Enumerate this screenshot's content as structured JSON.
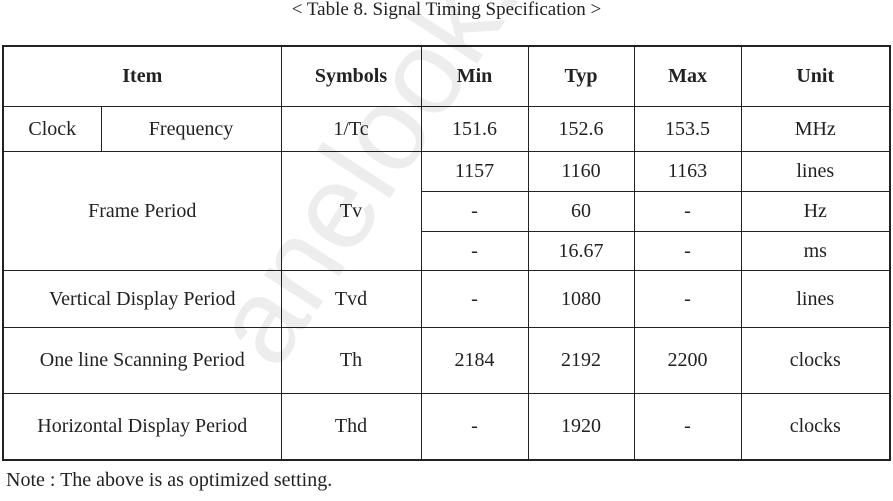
{
  "title": "< Table 8. Signal Timing Specification >",
  "table": {
    "header": [
      "Item",
      "Symbols",
      "Min",
      "Typ",
      "Max",
      "Unit"
    ],
    "rows": [
      [
        "Clock",
        "Frequency",
        "1/Tc",
        "151.6",
        "152.6",
        "153.5",
        "MHz"
      ],
      [
        "Frame Period",
        "Tv",
        "1157",
        "1160",
        "1163",
        "lines"
      ],
      [
        "-",
        "60",
        "-",
        "Hz"
      ],
      [
        "-",
        "16.67",
        "-",
        "ms"
      ],
      [
        "Vertical Display Period",
        "Tvd",
        "-",
        "1080",
        "-",
        "lines"
      ],
      [
        "One line Scanning Period",
        "Th",
        "2184",
        "2192",
        "2200",
        "clocks"
      ],
      [
        "Horizontal Display Period",
        "Thd",
        "-",
        "1920",
        "-",
        "clocks"
      ]
    ]
  },
  "note": "Note : The above is as optimized setting.",
  "watermark": "anelook.com"
}
